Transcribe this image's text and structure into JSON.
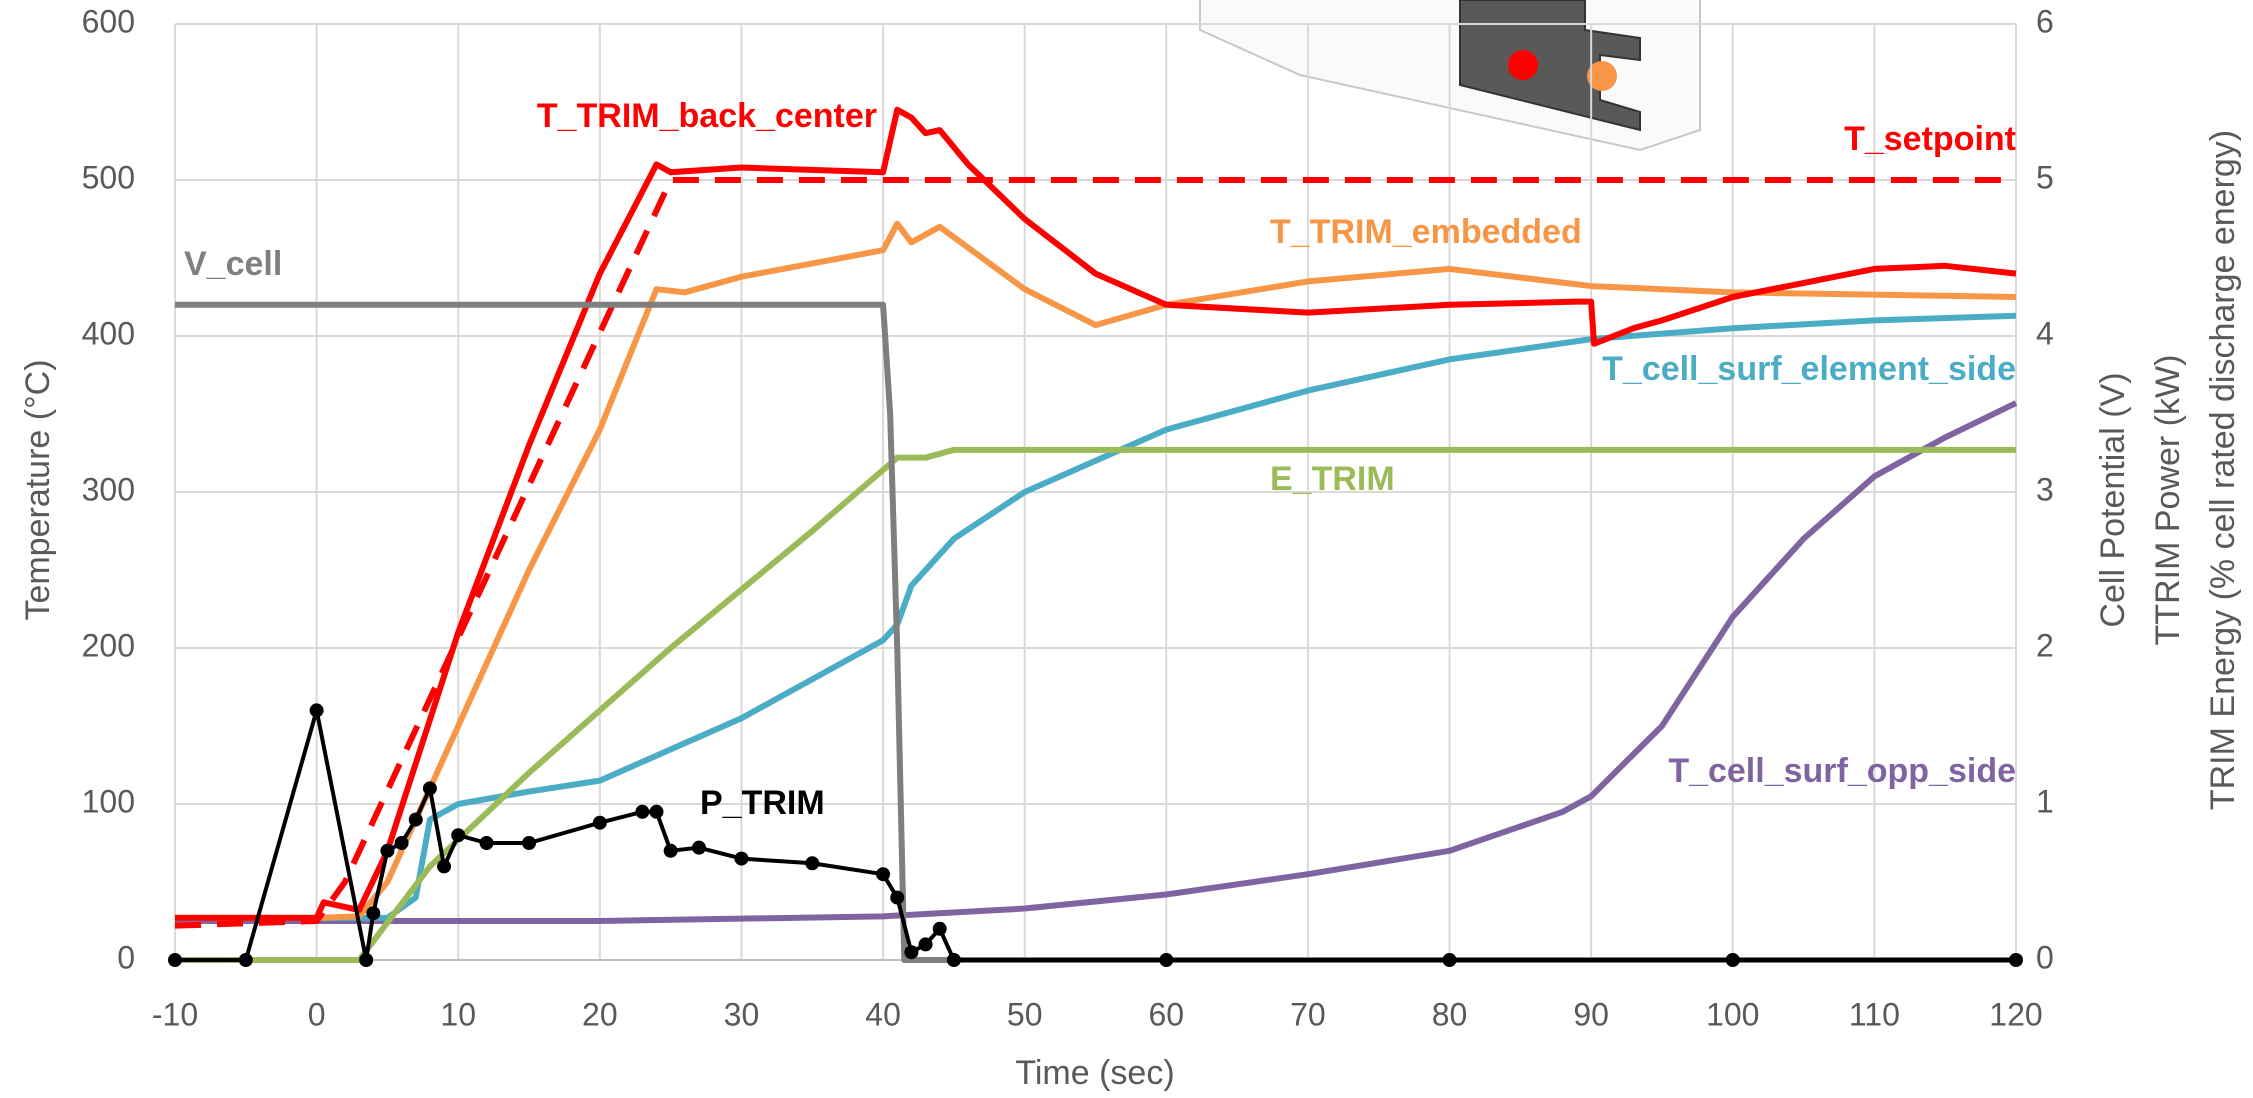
{
  "chart_data": {
    "type": "line",
    "xlabel": "Time (sec)",
    "ylabel": "Temperature (°C)",
    "y2label": [
      "Cell Potential (V)",
      "TTRIM Power (kW)",
      "TRIM Energy (% cell rated discharge energy)"
    ],
    "xlim": [
      -10,
      120
    ],
    "xticks": [
      -10,
      0,
      10,
      20,
      30,
      40,
      50,
      60,
      70,
      80,
      90,
      100,
      110,
      120
    ],
    "ylim": [
      0,
      600
    ],
    "yticks": [
      0,
      100,
      200,
      300,
      400,
      500,
      600
    ],
    "y2lim": [
      0,
      6
    ],
    "y2ticks": [
      0,
      1,
      2,
      3,
      4,
      5,
      6
    ],
    "grid": true,
    "series": [
      {
        "name": "T_cell_surf_opp_side",
        "color": "#8064a2",
        "axis": "y",
        "x": [
          -10,
          20,
          40,
          50,
          60,
          70,
          80,
          88,
          90,
          95,
          100,
          105,
          110,
          115,
          120
        ],
        "values": [
          25,
          25,
          28,
          33,
          42,
          55,
          70,
          95,
          105,
          150,
          220,
          270,
          310,
          335,
          357
        ]
      },
      {
        "name": "T_cell_surf_element_side",
        "color": "#4bacc6",
        "axis": "y",
        "x": [
          -10,
          0,
          5,
          7,
          8,
          10,
          15,
          20,
          25,
          30,
          35,
          40,
          41,
          42,
          45,
          50,
          55,
          60,
          70,
          80,
          90,
          100,
          110,
          120
        ],
        "values": [
          27,
          27,
          27,
          40,
          90,
          100,
          108,
          115,
          135,
          155,
          180,
          205,
          215,
          240,
          270,
          300,
          320,
          340,
          365,
          385,
          398,
          405,
          410,
          413
        ]
      },
      {
        "name": "E_TRIM",
        "color": "#9bbb59",
        "axis": "y2",
        "x": [
          -10,
          3,
          8,
          15,
          25,
          35,
          41,
          43,
          45,
          120
        ],
        "values": [
          0,
          0,
          0.6,
          1.2,
          2.0,
          2.75,
          3.22,
          3.22,
          3.27,
          3.27
        ]
      },
      {
        "name": "T_TRIM_embedded",
        "color": "#f79646",
        "axis": "y",
        "x": [
          -10,
          0,
          3,
          5,
          10,
          15,
          20,
          24,
          26,
          30,
          40,
          41,
          42,
          44,
          50,
          55,
          60,
          70,
          80,
          90,
          100,
          120
        ],
        "values": [
          27,
          27,
          28,
          50,
          150,
          250,
          340,
          430,
          428,
          438,
          455,
          472,
          460,
          470,
          430,
          407,
          420,
          435,
          443,
          432,
          428,
          425
        ]
      },
      {
        "name": "T_setpoint",
        "color": "#ff0000",
        "axis": "y",
        "dashed": true,
        "x": [
          -10,
          0,
          2,
          25,
          120
        ],
        "values": [
          22,
          25,
          50,
          500,
          500
        ]
      },
      {
        "name": "T_TRIM_back_center",
        "color": "#ff0000",
        "axis": "y",
        "x": [
          -10,
          0,
          0.5,
          3,
          5,
          10,
          15,
          20,
          24,
          25,
          30,
          40,
          41,
          42,
          43,
          44,
          46,
          50,
          55,
          60,
          70,
          80,
          89,
          90,
          90.2,
          93,
          95,
          100,
          110,
          115,
          120
        ],
        "values": [
          27,
          27,
          37,
          32,
          70,
          210,
          330,
          440,
          510,
          505,
          508,
          505,
          545,
          540,
          530,
          532,
          510,
          475,
          440,
          420,
          415,
          420,
          422,
          422,
          395,
          405,
          410,
          425,
          443,
          445,
          440
        ]
      },
      {
        "name": "V_cell",
        "color": "#7f7f7f",
        "axis": "y2",
        "x": [
          -10,
          40,
          40.5,
          41,
          41.5,
          120
        ],
        "values": [
          4.2,
          4.2,
          3.5,
          2.0,
          0,
          0
        ]
      },
      {
        "name": "P_TRIM",
        "color": "#000000",
        "axis": "y2",
        "markers": true,
        "x": [
          -10,
          -5,
          0,
          3.5,
          4,
          5,
          6,
          7,
          8,
          9,
          10,
          12,
          15,
          20,
          23,
          24,
          25,
          27,
          30,
          35,
          40,
          41,
          42,
          43,
          44,
          45,
          60,
          80,
          100,
          120
        ],
        "values": [
          0,
          0,
          1.6,
          0,
          0.3,
          0.7,
          0.75,
          0.9,
          1.1,
          0.6,
          0.8,
          0.75,
          0.75,
          0.88,
          0.95,
          0.95,
          0.7,
          0.72,
          0.65,
          0.62,
          0.55,
          0.4,
          0.05,
          0.1,
          0.2,
          0,
          0,
          0,
          0,
          0
        ]
      }
    ]
  }
}
